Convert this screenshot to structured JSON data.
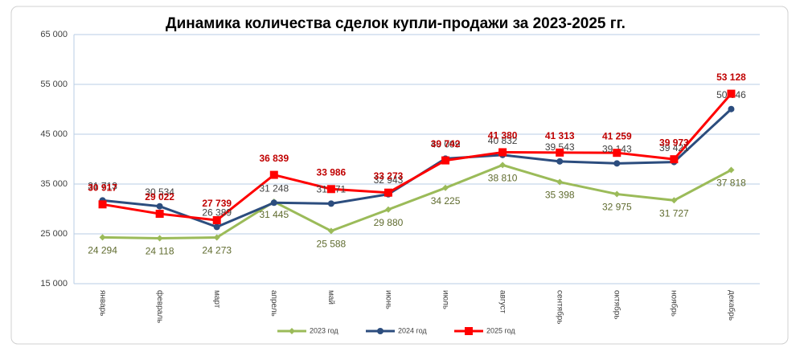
{
  "chart_data": {
    "type": "line",
    "title": "Динамика количества сделок купли-продажи за 2023-2025 гг.",
    "categories": [
      "январь",
      "февраль",
      "март",
      "апрель",
      "май",
      "июнь",
      "июль",
      "август",
      "сентябрь",
      "октябрь",
      "ноябрь",
      "декабрь"
    ],
    "series": [
      {
        "name": "2023 год",
        "color": "#9bbb59",
        "values": [
          24294,
          24118,
          24273,
          31445,
          25588,
          29880,
          34225,
          38810,
          35398,
          32975,
          31727,
          37818
        ],
        "value_labels": [
          "24 294",
          "24 118",
          "24 273",
          "31 445",
          "25 588",
          "29 880",
          "34 225",
          "38 810",
          "35 398",
          "32 975",
          "31 727",
          "37 818"
        ]
      },
      {
        "name": "2024 год",
        "color": "#2c4d7e",
        "values": [
          31713,
          30534,
          26389,
          31248,
          31071,
          32943,
          40099,
          40832,
          39543,
          39143,
          39421,
          50046
        ],
        "value_labels": [
          "31 713",
          "30 534",
          "26 389",
          "31 248",
          "31 071",
          "32 943",
          "40 099",
          "40 832",
          "39 543",
          "39 143",
          "39 421",
          "50 046"
        ]
      },
      {
        "name": "2025 год",
        "color": "#ff0000",
        "values": [
          30917,
          29022,
          27739,
          36839,
          33986,
          33273,
          39742,
          41380,
          41313,
          41259,
          39973,
          53128
        ],
        "value_labels": [
          "30 917",
          "29 022",
          "27 739",
          "36 839",
          "33 986",
          "33 273",
          "39 742",
          "41 380",
          "41 313",
          "41 259",
          "39 973",
          "53 128"
        ]
      }
    ],
    "ylim": [
      15000,
      65000
    ],
    "yticks": [
      {
        "value": 15000,
        "label": "15 000"
      },
      {
        "value": 25000,
        "label": "25 000"
      },
      {
        "value": 35000,
        "label": "35 000"
      },
      {
        "value": 45000,
        "label": "45 000"
      },
      {
        "value": 55000,
        "label": "55 000"
      },
      {
        "value": 65000,
        "label": "65 000"
      }
    ],
    "grid": true,
    "legend": "bottom"
  }
}
